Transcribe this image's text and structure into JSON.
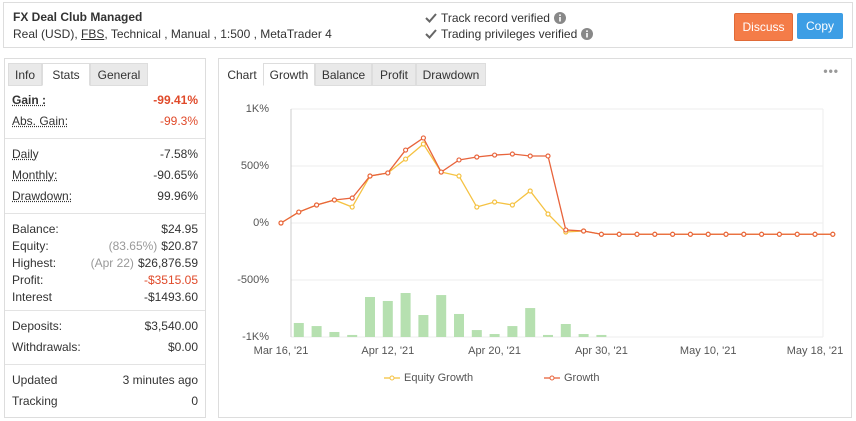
{
  "header": {
    "title": "FX Deal Club Managed",
    "account": [
      "Real (USD),",
      "FBS",
      ", Technical , Manual , 1:500 , MetaTrader 4"
    ],
    "verified": [
      "Track record verified",
      "Trading privileges verified"
    ],
    "buttons": [
      "Discuss",
      "Copy"
    ]
  },
  "stats": {
    "tabs": [
      "Info",
      "Stats",
      "General"
    ],
    "groups": [
      [
        {
          "label": "Gain :",
          "value": "-99.41%"
        },
        {
          "label": "Abs. Gain:",
          "value": "-99.3%"
        }
      ],
      [
        {
          "label": "Daily",
          "value": "-7.58%"
        },
        {
          "label": "Monthly:",
          "value": "-90.65%"
        },
        {
          "label": "Drawdown:",
          "value": "99.96%"
        }
      ],
      [
        {
          "label": "Balance:",
          "value": "$24.95"
        },
        {
          "label": "Equity:",
          "note": "(83.65%)",
          "value": "$20.87"
        },
        {
          "label": "Highest:",
          "note": "(Apr 22)",
          "value": "$26,876.59"
        },
        {
          "label": "Profit:",
          "value": "-$3515.05"
        },
        {
          "label": "Interest",
          "value": "-$1493.60"
        }
      ],
      [
        {
          "label": "Deposits:",
          "value": "$3,540.00"
        },
        {
          "label": "Withdrawals:",
          "value": "$0.00"
        }
      ],
      [
        {
          "label": "Updated",
          "value": "3 minutes ago"
        },
        {
          "label": "Tracking",
          "value": "0"
        }
      ]
    ]
  },
  "chart_tabs": [
    "Chart",
    "Growth",
    "Balance",
    "Profit",
    "Drawdown"
  ],
  "chart_data": {
    "type": "line",
    "categories": [
      "Mar 16, '21",
      null,
      null,
      null,
      null,
      null,
      "Apr 12, '21",
      null,
      null,
      null,
      null,
      null,
      "Apr 20, '21",
      null,
      null,
      null,
      null,
      null,
      "Apr 30, '21",
      null,
      null,
      null,
      null,
      null,
      "May 10, '21",
      null,
      null,
      null,
      null,
      null,
      "May 18, '21",
      null
    ],
    "series": [
      {
        "name": "Equity Growth",
        "color": "#f5c242",
        "values": [
          0,
          96,
          158,
          202,
          140,
          412,
          439,
          561,
          693,
          447,
          412,
          140,
          184,
          158,
          281,
          79,
          -79,
          -70,
          -99,
          -99,
          -99,
          -99,
          -99,
          -99,
          -99,
          -99,
          -99,
          -99,
          -99,
          -99,
          -99,
          -99
        ]
      },
      {
        "name": "Growth",
        "color": "#e8643c",
        "values": [
          0,
          96,
          158,
          202,
          219,
          412,
          439,
          640,
          746,
          447,
          553,
          579,
          596,
          605,
          588,
          588,
          -61,
          -70,
          -99,
          -99,
          -99,
          -99,
          -99,
          -99,
          -99,
          -99,
          -99,
          -99,
          -99,
          -99,
          -99,
          -99
        ]
      },
      {
        "type": "bar",
        "color": "#b6e0b0",
        "values": [
          null,
          -877,
          -904,
          -956,
          -982,
          -649,
          -684,
          -614,
          -807,
          -632,
          -798,
          -939,
          -974,
          -904,
          -746,
          -982,
          -886,
          -974,
          -982,
          null,
          null,
          null,
          null,
          null,
          null,
          null,
          null,
          null,
          null,
          null,
          null,
          null
        ]
      }
    ],
    "ylim": [
      -1000,
      1000
    ],
    "yticks": [
      {
        "value": 1000,
        "label": "1K%"
      },
      {
        "value": 500,
        "label": "500%"
      },
      {
        "value": 0,
        "label": "0%"
      },
      {
        "value": -500,
        "label": "-500%"
      },
      {
        "value": -1000,
        "label": "-1K%"
      }
    ],
    "grid": true
  }
}
